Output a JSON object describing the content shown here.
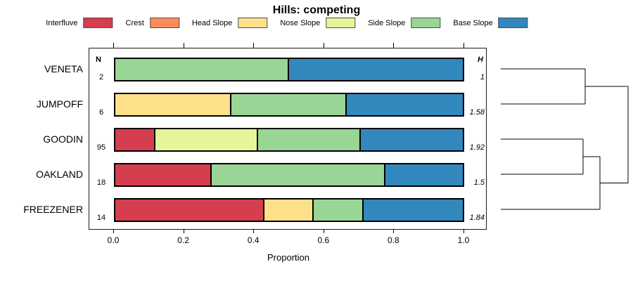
{
  "title": "Hills: competing",
  "legend": [
    {
      "label": "Interfluve",
      "color": "#D53E4F"
    },
    {
      "label": "Crest",
      "color": "#FC8D59"
    },
    {
      "label": "Head Slope",
      "color": "#FEE08B"
    },
    {
      "label": "Nose Slope",
      "color": "#E6F598"
    },
    {
      "label": "Side Slope",
      "color": "#99D594"
    },
    {
      "label": "Base Slope",
      "color": "#3288BD"
    }
  ],
  "columns": {
    "n_header": "N",
    "h_header": "H"
  },
  "x_axis": {
    "label": "Proportion",
    "ticks": [
      "0.0",
      "0.2",
      "0.4",
      "0.6",
      "0.8",
      "1.0"
    ],
    "range": [
      0,
      1
    ]
  },
  "chart_data": {
    "type": "bar",
    "orientation": "horizontal-stacked",
    "title": "Hills: competing",
    "xlabel": "Proportion",
    "xlim": [
      0,
      1
    ],
    "grid": false,
    "legend_position": "top",
    "categories": [
      "Interfluve",
      "Crest",
      "Head Slope",
      "Nose Slope",
      "Side Slope",
      "Base Slope"
    ],
    "rows": [
      {
        "label": "VENETA",
        "n": "2",
        "h": "1",
        "segments": [
          {
            "category": "Side Slope",
            "value": 0.5
          },
          {
            "category": "Base Slope",
            "value": 0.5
          }
        ]
      },
      {
        "label": "JUMPOFF",
        "n": "6",
        "h": "1.58",
        "segments": [
          {
            "category": "Head Slope",
            "value": 0.3333
          },
          {
            "category": "Side Slope",
            "value": 0.3333
          },
          {
            "category": "Base Slope",
            "value": 0.3334
          }
        ]
      },
      {
        "label": "GOODIN",
        "n": "95",
        "h": "1.92",
        "segments": [
          {
            "category": "Interfluve",
            "value": 0.116
          },
          {
            "category": "Nose Slope",
            "value": 0.295
          },
          {
            "category": "Side Slope",
            "value": 0.295
          },
          {
            "category": "Base Slope",
            "value": 0.294
          }
        ]
      },
      {
        "label": "OAKLAND",
        "n": "18",
        "h": "1.5",
        "segments": [
          {
            "category": "Interfluve",
            "value": 0.278
          },
          {
            "category": "Side Slope",
            "value": 0.5
          },
          {
            "category": "Base Slope",
            "value": 0.222
          }
        ]
      },
      {
        "label": "FREEZENER",
        "n": "14",
        "h": "1.84",
        "segments": [
          {
            "category": "Interfluve",
            "value": 0.4286
          },
          {
            "category": "Head Slope",
            "value": 0.1428
          },
          {
            "category": "Side Slope",
            "value": 0.1429
          },
          {
            "category": "Base Slope",
            "value": 0.2857
          }
        ]
      }
    ],
    "dendrogram": {
      "structure": "((VENETA,JUMPOFF),((GOODIN,OAKLAND),FREEZENER))",
      "line_color": "#000000",
      "segments": [
        [
          17,
          38,
          137,
          38
        ],
        [
          17,
          88,
          137,
          88
        ],
        [
          137,
          38,
          137,
          88
        ],
        [
          137,
          63,
          198,
          63
        ],
        [
          17,
          138,
          134,
          138
        ],
        [
          17,
          188,
          134,
          188
        ],
        [
          134,
          138,
          134,
          188
        ],
        [
          134,
          163,
          158,
          163
        ],
        [
          17,
          238,
          158,
          238
        ],
        [
          158,
          163,
          158,
          238
        ],
        [
          158,
          200.5,
          198,
          200.5
        ],
        [
          198,
          63,
          198,
          200.5
        ]
      ]
    }
  }
}
